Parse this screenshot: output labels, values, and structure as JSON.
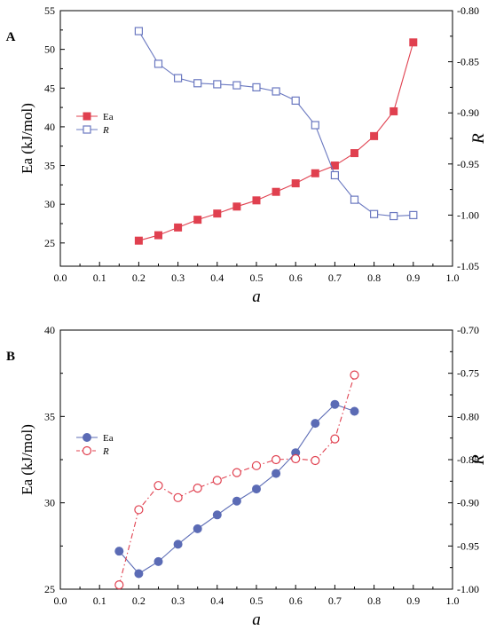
{
  "chart_data": [
    {
      "panel_label": "A",
      "type": "line",
      "xlabel": "a",
      "ylabel": "Ea (kJ/mol)",
      "y2label": "R",
      "xlim": [
        0.0,
        1.0
      ],
      "ylim": [
        22,
        55
      ],
      "y2lim": [
        -1.05,
        -0.8
      ],
      "xticks": [
        0.0,
        0.1,
        0.2,
        0.3,
        0.4,
        0.5,
        0.6,
        0.7,
        0.8,
        0.9,
        1.0
      ],
      "yticks": [
        25,
        30,
        35,
        40,
        45,
        50,
        55
      ],
      "y2ticks": [
        -0.8,
        -0.85,
        -0.9,
        -0.95,
        -1.0,
        -1.05
      ],
      "xtick_labels": [
        "0.0",
        "0.1",
        "0.2",
        "0.3",
        "0.4",
        "0.5",
        "0.6",
        "0.7",
        "0.8",
        "0.9",
        "1.0"
      ],
      "ytick_labels": [
        "25",
        "30",
        "35",
        "40",
        "45",
        "50",
        "55"
      ],
      "y2tick_labels": [
        "-0.80",
        "-0.85",
        "-0.90",
        "-0.95",
        "-1.00",
        "-1.05"
      ],
      "legend_position": "center-left",
      "series": [
        {
          "name": "Ea",
          "axis": "left",
          "color": "#e0404f",
          "marker": "square-filled",
          "line_style": "solid",
          "x": [
            0.2,
            0.25,
            0.3,
            0.35,
            0.4,
            0.45,
            0.5,
            0.55,
            0.6,
            0.65,
            0.7,
            0.75,
            0.8,
            0.85,
            0.9
          ],
          "y": [
            25.3,
            26.0,
            27.0,
            28.0,
            28.8,
            29.7,
            30.5,
            31.6,
            32.7,
            34.0,
            35.0,
            36.6,
            38.8,
            42.0,
            50.9
          ]
        },
        {
          "name": "R",
          "axis": "right",
          "color": "#6a78c0",
          "marker": "square-open",
          "line_style": "solid",
          "x": [
            0.2,
            0.25,
            0.3,
            0.35,
            0.4,
            0.45,
            0.5,
            0.55,
            0.6,
            0.65,
            0.7,
            0.75,
            0.8,
            0.85,
            0.9
          ],
          "y": [
            -0.82,
            -0.852,
            -0.866,
            -0.871,
            -0.872,
            -0.873,
            -0.875,
            -0.879,
            -0.888,
            -0.912,
            -0.961,
            -0.985,
            -0.999,
            -1.001,
            -1.0
          ]
        }
      ]
    },
    {
      "panel_label": "B",
      "type": "line",
      "xlabel": "a",
      "ylabel": "Ea (kJ/mol)",
      "y2label": "R",
      "xlim": [
        0.0,
        1.0
      ],
      "ylim": [
        25,
        40
      ],
      "y2lim": [
        -1.0,
        -0.7
      ],
      "xticks": [
        0.0,
        0.1,
        0.2,
        0.3,
        0.4,
        0.5,
        0.6,
        0.7,
        0.8,
        0.9,
        1.0
      ],
      "yticks": [
        25,
        30,
        35,
        40
      ],
      "y2ticks": [
        -0.7,
        -0.75,
        -0.8,
        -0.85,
        -0.9,
        -0.95,
        -1.0
      ],
      "xtick_labels": [
        "0.0",
        "0.1",
        "0.2",
        "0.3",
        "0.4",
        "0.5",
        "0.6",
        "0.7",
        "0.8",
        "0.9",
        "1.0"
      ],
      "ytick_labels": [
        "25",
        "30",
        "35",
        "40"
      ],
      "y2tick_labels": [
        "-0.70",
        "-0.75",
        "-0.80",
        "-0.85",
        "-0.90",
        "-0.95",
        "-1.00"
      ],
      "legend_position": "center-left",
      "series": [
        {
          "name": "Ea",
          "axis": "left",
          "color": "#5b6bb5",
          "marker": "circle-filled",
          "line_style": "solid",
          "x": [
            0.15,
            0.2,
            0.25,
            0.3,
            0.35,
            0.4,
            0.45,
            0.5,
            0.55,
            0.6,
            0.65,
            0.7,
            0.75
          ],
          "y": [
            27.2,
            25.9,
            26.6,
            27.6,
            28.5,
            29.3,
            30.1,
            30.8,
            31.7,
            32.9,
            34.6,
            35.7,
            35.3
          ]
        },
        {
          "name": "R",
          "axis": "right",
          "color": "#e0404f",
          "marker": "circle-open",
          "line_style": "dash-dot",
          "x": [
            0.15,
            0.2,
            0.25,
            0.3,
            0.35,
            0.4,
            0.45,
            0.5,
            0.55,
            0.6,
            0.65,
            0.7,
            0.75
          ],
          "y": [
            -0.995,
            -0.908,
            -0.88,
            -0.894,
            -0.883,
            -0.874,
            -0.865,
            -0.857,
            -0.85,
            -0.849,
            -0.851,
            -0.826,
            -0.752
          ]
        }
      ]
    }
  ]
}
